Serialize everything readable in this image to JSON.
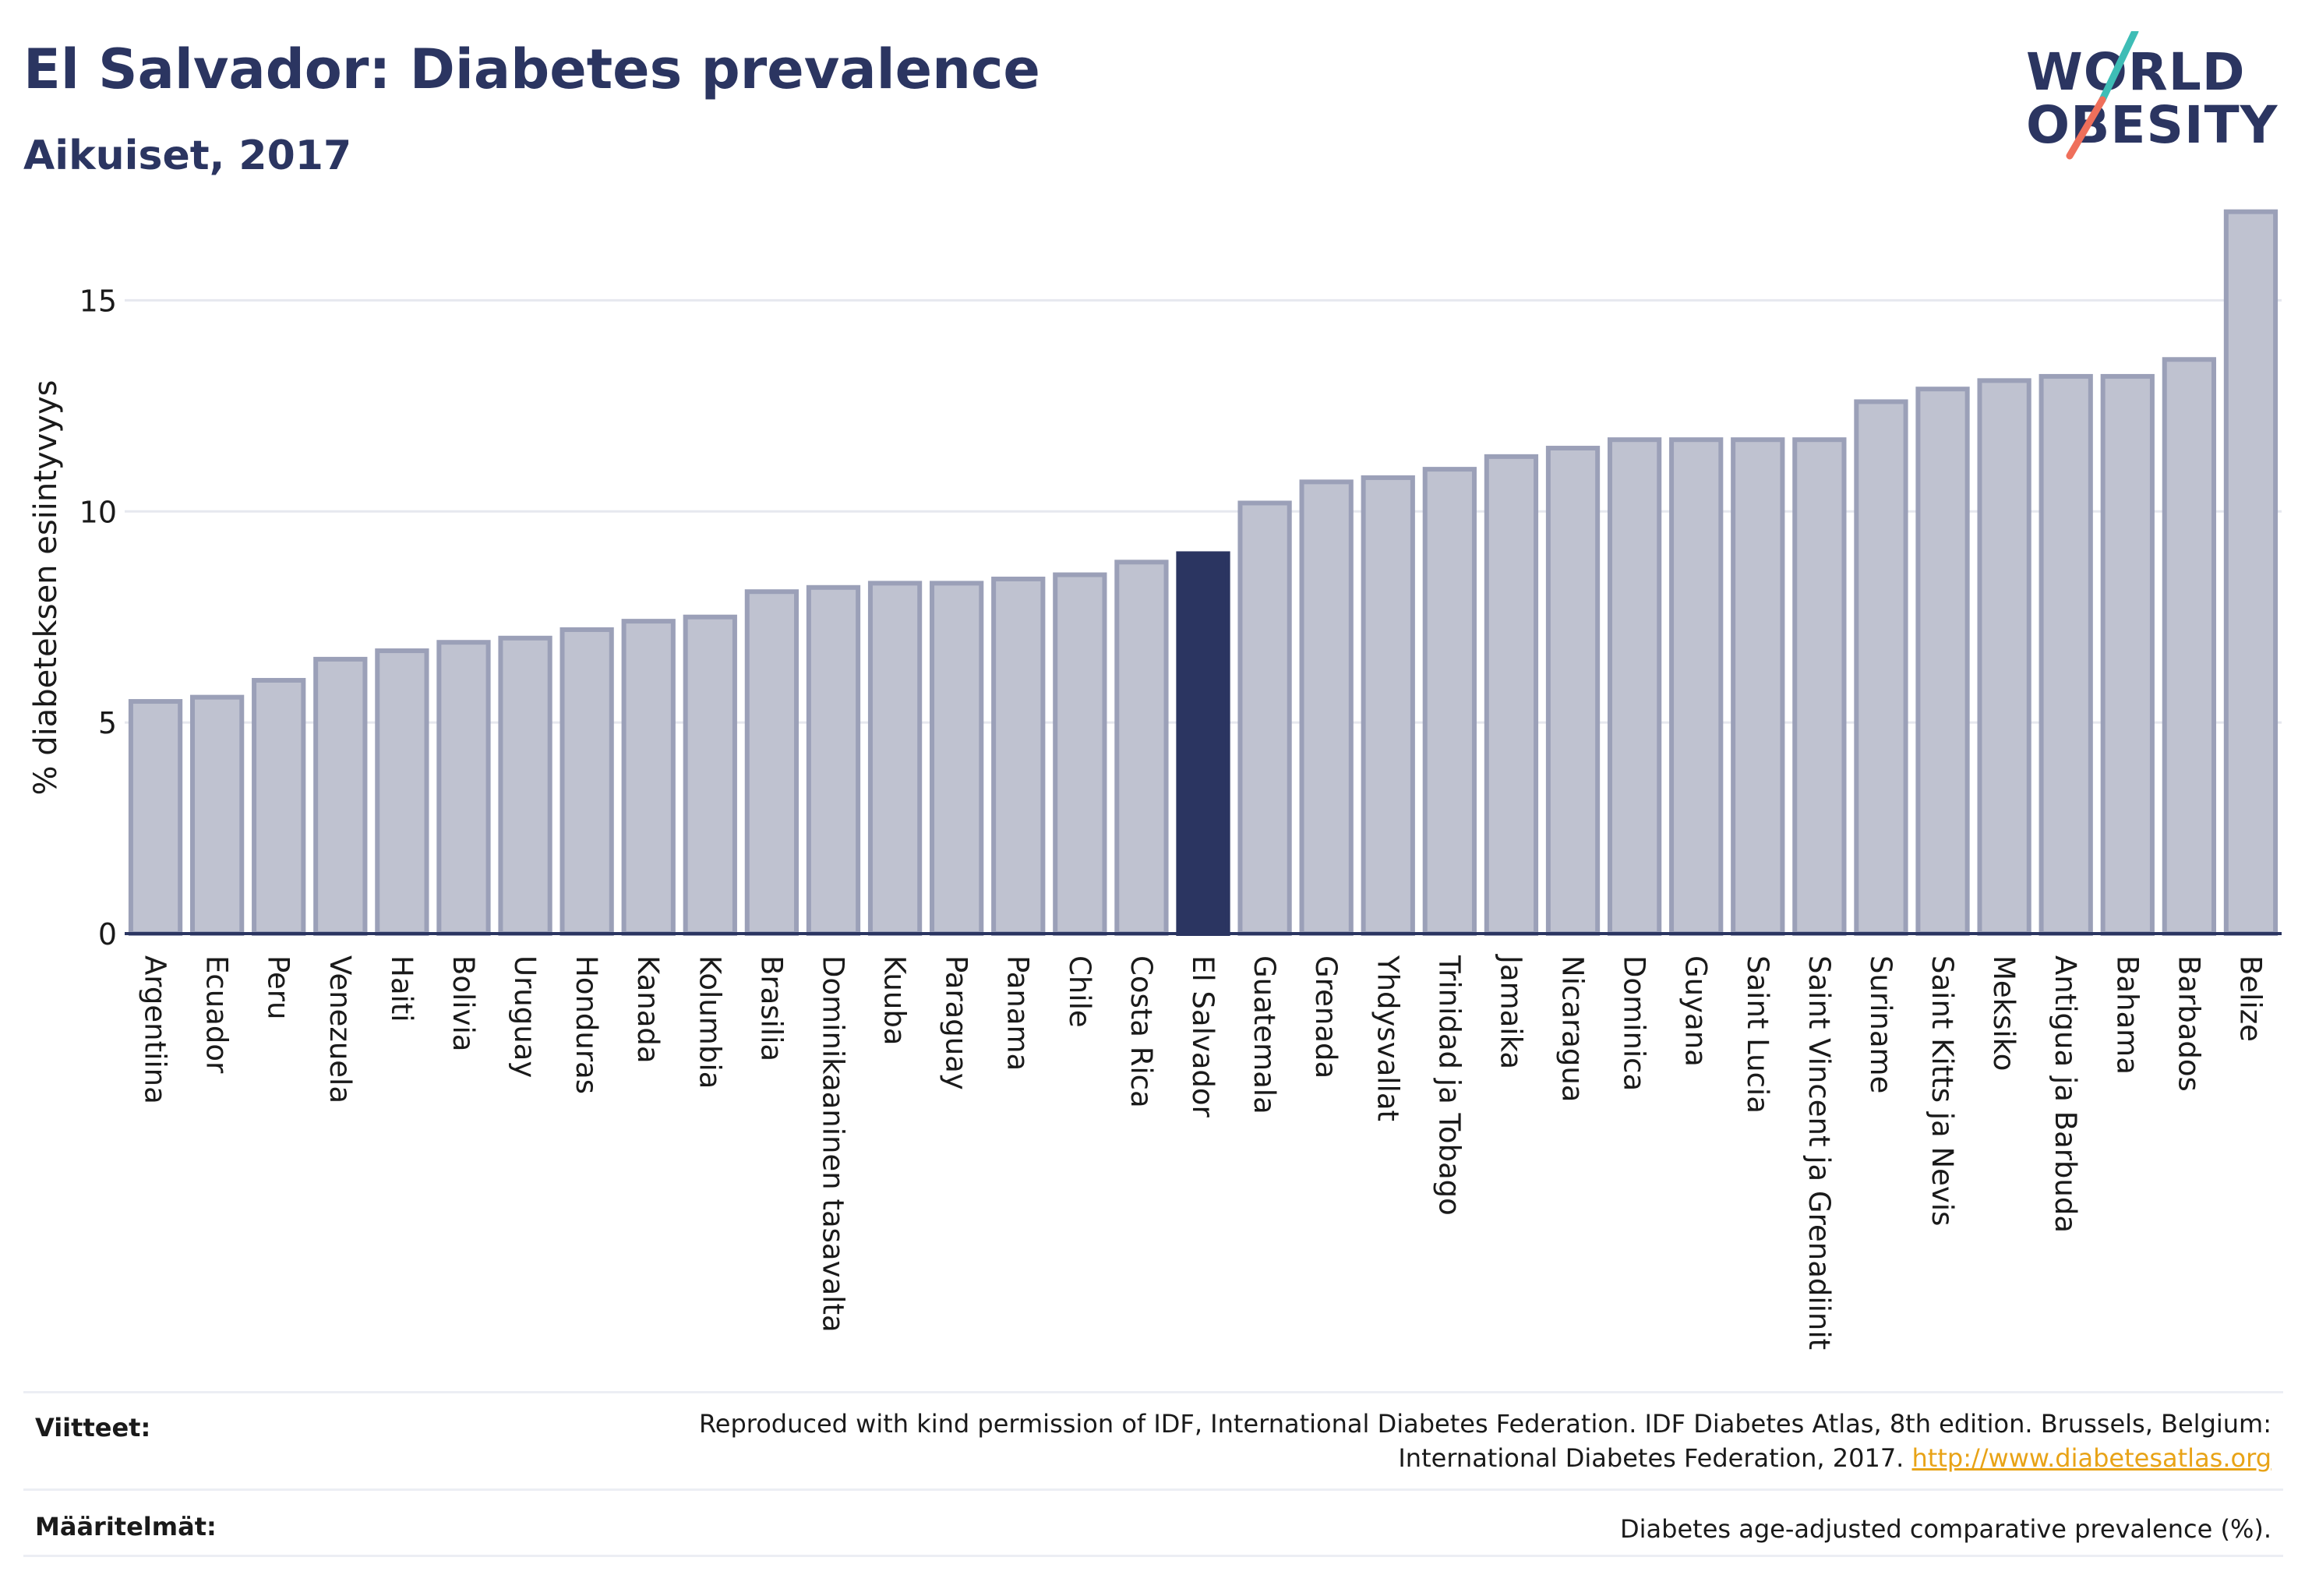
{
  "header": {
    "title": "El Salvador: Diabetes prevalence",
    "subtitle": "Aikuiset, 2017"
  },
  "logo": {
    "line1": "WORLD",
    "line2": "OBESITY",
    "slash_color_top": "#3ebdb6",
    "slash_color_bottom": "#ef6f5b"
  },
  "colors": {
    "bar": "#bfc2d0",
    "bar_border": "#9ba0b8",
    "highlight": "#2b3561",
    "grid": "#e6e8ef",
    "axis": "#2b3561"
  },
  "chart_data": {
    "type": "bar",
    "ylabel": "% diabeteksen esiintyvyys",
    "ylim": [
      0,
      17.5
    ],
    "yticks": [
      0,
      5,
      10,
      15
    ],
    "grid": true,
    "highlight": "El Salvador",
    "categories": [
      "Argentiina",
      "Ecuador",
      "Peru",
      "Venezuela",
      "Haiti",
      "Bolivia",
      "Uruguay",
      "Honduras",
      "Kanada",
      "Kolumbia",
      "Brasilia",
      "Dominikaaninen tasavalta",
      "Kuuba",
      "Paraguay",
      "Panama",
      "Chile",
      "Costa Rica",
      "El Salvador",
      "Guatemala",
      "Grenada",
      "Yhdysvallat",
      "Trinidad ja Tobago",
      "Jamaika",
      "Nicaragua",
      "Dominica",
      "Guyana",
      "Saint Lucia",
      "Saint Vincent ja Grenadiinit",
      "Suriname",
      "Saint Kitts ja Nevis",
      "Meksiko",
      "Antigua ja Barbuda",
      "Bahama",
      "Barbados",
      "Belize"
    ],
    "values": [
      5.5,
      5.6,
      6.0,
      6.5,
      6.7,
      6.9,
      7.0,
      7.2,
      7.4,
      7.5,
      8.1,
      8.2,
      8.3,
      8.3,
      8.4,
      8.5,
      8.8,
      9.0,
      10.2,
      10.7,
      10.8,
      11.0,
      11.3,
      11.5,
      11.7,
      11.7,
      11.7,
      11.7,
      12.6,
      12.9,
      13.1,
      13.2,
      13.2,
      13.6,
      17.1
    ]
  },
  "footer": {
    "references_label": "Viitteet:",
    "references_line1": "Reproduced with kind permission of IDF, International Diabetes Federation. IDF Diabetes Atlas, 8th edition. Brussels, Belgium:",
    "references_line2": "International Diabetes Federation, 2017.",
    "references_link": "http://www.diabetesatlas.org",
    "definitions_label": "Määritelmät:",
    "definitions_text": "Diabetes age-adjusted comparative prevalence (%)."
  }
}
